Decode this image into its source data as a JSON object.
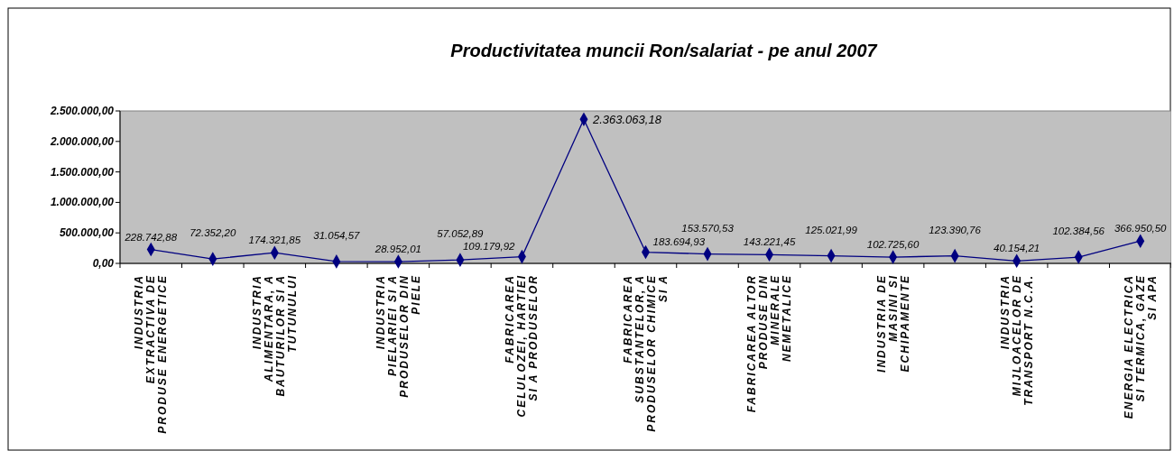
{
  "chart_data": {
    "type": "line",
    "title": "Productivitatea muncii Ron/salariat - pe anul 2007",
    "categories": [
      "INDUSTRIA EXTRACTIVA DE PRODUSE ENERGETICE",
      null,
      "INDUSTRIA ALIMENTARA, A BAUTURILOR SI A TUTUNULUI",
      null,
      "INDUSTRIA PIELARIEI SI A PRODUSELOR DIN PIELE",
      null,
      "FABRICAREA CELULOZEI, HARTIEI SI A PRODUSELOR",
      null,
      "FABRICAREA SUBSTANTELOR, A PRODUSELOR CHIMICE SI A",
      null,
      "FABRICAREA ALTOR PRODUSE DIN MINERALE NEMETALICE",
      null,
      "INDUSTRIA DE MASINI SI ECHIPAMENTE",
      null,
      "INDUSTRIA MIJLOACELOR DE TRANSPORT N.C.A.",
      null,
      "ENERGIA ELECTRICA SI TERMICA, GAZE SI APA"
    ],
    "series": [
      {
        "color": "#000080",
        "values": [
          228742.88,
          72352.2,
          174321.85,
          31054.57,
          28952.01,
          57052.89,
          109179.92,
          2363063.18,
          183694.93,
          153570.53,
          143221.45,
          125021.99,
          102725.6,
          123390.76,
          40154.21,
          102384.56,
          366950.5
        ],
        "value_labels": [
          "228.742,88",
          "72.352,20",
          "174.321,85",
          "31.054,57",
          "28.952,01",
          "57.052,89",
          "109.179,92",
          "2.363.063,18",
          "183.694,93",
          "153.570,53",
          "143.221,45",
          "125.021,99",
          "102.725,60",
          "123.390,76",
          "40.154,21",
          "102.384,56",
          "366.950,50"
        ]
      }
    ],
    "ylim": [
      0,
      2500000
    ],
    "yticks": [
      {
        "value": 0,
        "label": "0,00"
      },
      {
        "value": 500000,
        "label": "500.000,00"
      },
      {
        "value": 1000000,
        "label": "1.000.000,00"
      },
      {
        "value": 1500000,
        "label": "1.500.000,00"
      },
      {
        "value": 2000000,
        "label": "2.000.000,00"
      },
      {
        "value": 2500000,
        "label": "2.500.000,00"
      }
    ],
    "marker": "diamond",
    "grid": false
  }
}
